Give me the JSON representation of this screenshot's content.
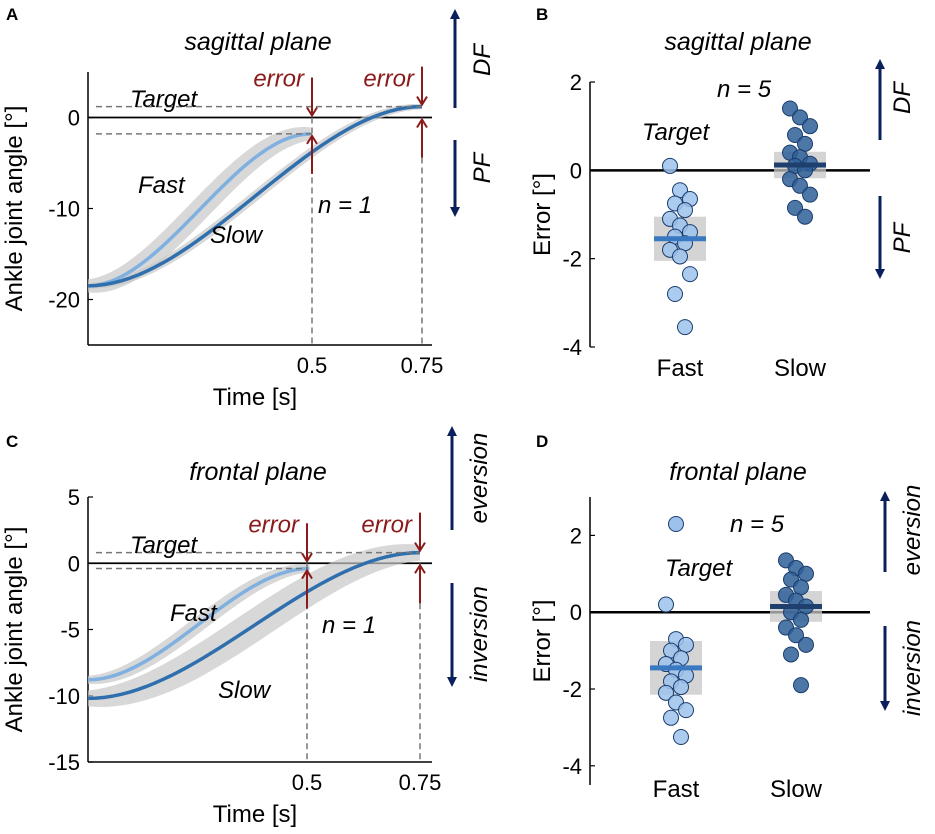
{
  "chart_data": [
    {
      "panel": "A",
      "type": "line",
      "title": "sagittal plane",
      "xlabel": "Time [s]",
      "ylabel": "Ankle joint angle [°]",
      "ylim": [
        -25,
        5
      ],
      "xlim": [
        0,
        0.75
      ],
      "yticks": [
        0,
        -10,
        -20
      ],
      "xticks": [
        "0.5",
        "0.75"
      ],
      "target_label": "Target",
      "target": 0,
      "n_label": "n = 1",
      "error_label": "error",
      "series": [
        {
          "name": "Fast",
          "end_x": 0.5,
          "start": -18.5,
          "end": -1.8,
          "color": "#7fb0e0",
          "band": 1.2
        },
        {
          "name": "Slow",
          "end_x": 0.75,
          "start": -18.5,
          "end": 1.2,
          "color": "#2f6fad",
          "band": 0.5
        }
      ],
      "dir_up": "DF",
      "dir_down": "PF"
    },
    {
      "panel": "B",
      "type": "scatter",
      "title": "sagittal plane",
      "ylabel": "Error [°]",
      "ylim": [
        -4,
        2
      ],
      "yticks": [
        2,
        0,
        -2,
        -4
      ],
      "categories": [
        "Fast",
        "Slow"
      ],
      "target_label": "Target",
      "n_label": "n = 5",
      "series": [
        {
          "name": "Fast",
          "color": "#9cc2ec",
          "mean": -1.55,
          "band": [
            -2.05,
            -1.05
          ],
          "values": [
            0.1,
            -0.45,
            -0.65,
            -0.75,
            -0.9,
            -1.1,
            -1.25,
            -1.4,
            -1.5,
            -1.65,
            -1.8,
            -1.95,
            -2.35,
            -2.8,
            -3.55
          ]
        },
        {
          "name": "Slow",
          "color": "#2e5f98",
          "mean": 0.12,
          "band": [
            -0.18,
            0.42
          ],
          "values": [
            1.4,
            1.2,
            1.0,
            0.8,
            0.6,
            0.4,
            0.3,
            0.15,
            0.1,
            0.0,
            -0.2,
            -0.35,
            -0.55,
            -0.85,
            -1.05
          ]
        }
      ],
      "dir_up": "DF",
      "dir_down": "PF"
    },
    {
      "panel": "C",
      "type": "line",
      "title": "frontal plane",
      "xlabel": "Time [s]",
      "ylabel": "Ankle joint angle [°]",
      "ylim": [
        -15,
        5
      ],
      "xlim": [
        0,
        0.75
      ],
      "yticks": [
        5,
        0,
        -5,
        -10,
        -15
      ],
      "xticks": [
        "0.5",
        "0.75"
      ],
      "target_label": "Target",
      "target": 0,
      "n_label": "n = 1",
      "error_label": "error",
      "series": [
        {
          "name": "Fast",
          "end_x": 0.5,
          "start": -8.8,
          "end": -0.4,
          "color": "#7fb0e0",
          "band": 0.5
        },
        {
          "name": "Slow",
          "end_x": 0.75,
          "start": -10.2,
          "end": 0.8,
          "color": "#2f6fad",
          "band": 1.0
        }
      ],
      "dir_up": "eversion",
      "dir_down": "inversion"
    },
    {
      "panel": "D",
      "type": "scatter",
      "title": "frontal plane",
      "ylabel": "Error [°]",
      "ylim": [
        -4.5,
        3
      ],
      "yticks": [
        2,
        0,
        -2,
        -4
      ],
      "categories": [
        "Fast",
        "Slow"
      ],
      "target_label": "Target",
      "n_label": "n = 5",
      "series": [
        {
          "name": "Fast",
          "color": "#9cc2ec",
          "mean": -1.45,
          "band": [
            -2.15,
            -0.75
          ],
          "values": [
            0.2,
            -0.7,
            -0.85,
            -1.0,
            -1.2,
            -1.35,
            -1.5,
            -1.65,
            -1.8,
            -1.95,
            -2.1,
            -2.35,
            -2.55,
            -2.75,
            -3.25
          ]
        },
        {
          "name": "Slow",
          "color": "#2e5f98",
          "mean": 0.15,
          "band": [
            -0.25,
            0.55
          ],
          "values": [
            1.35,
            1.15,
            1.0,
            0.85,
            0.65,
            0.45,
            0.3,
            0.15,
            0.0,
            -0.2,
            -0.4,
            -0.6,
            -0.85,
            -1.1,
            -1.9
          ]
        }
      ],
      "legend_marker_label": "n = 5",
      "dir_up": "eversion",
      "dir_down": "inversion"
    }
  ]
}
